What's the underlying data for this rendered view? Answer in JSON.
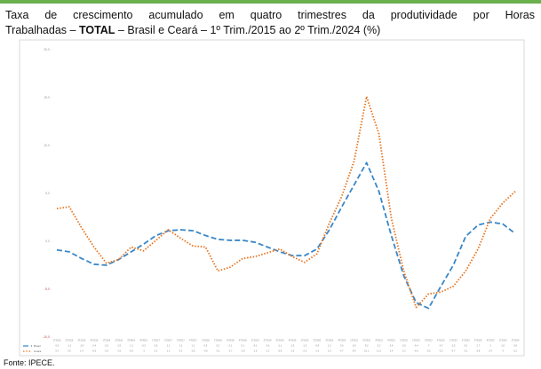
{
  "chart_data": {
    "type": "line",
    "title": [
      "Taxa de crescimento acumulado em quatro trimestres da produtividade por Horas",
      "Trabalhadas – ",
      "TOTAL",
      " – Brasil e Ceará – 1º Trim./2015 ao 2º Trim./2024 (%)"
    ],
    "source": "Fonte: IPECE.",
    "categories": [
      "1T2015",
      "2T2015",
      "3T2015",
      "4T2015",
      "1T2016",
      "2T2016",
      "3T2016",
      "4T2016",
      "1T2017",
      "2T2017",
      "3T2017",
      "4T2017",
      "1T2018",
      "2T2018",
      "3T2018",
      "4T2018",
      "1T2019",
      "2T2019",
      "3T2019",
      "4T2019",
      "1T2020",
      "2T2020",
      "3T2020",
      "4T2020",
      "1T2021",
      "2T2021",
      "3T2021",
      "4T2021",
      "1T2022",
      "2T2022",
      "3T2022",
      "4T2022",
      "1T2023",
      "2T2023",
      "3T2023",
      "4T2023",
      "1T2024",
      "2T2024"
    ],
    "series": [
      {
        "name": "Brasil",
        "color": "#3a87c8",
        "dash": "dashed",
        "values": [
          -0.9,
          -1.1,
          -1.8,
          -2.4,
          -2.5,
          -1.9,
          -1.1,
          -0.3,
          0.6,
          1.1,
          1.2,
          1.1,
          0.6,
          0.2,
          0.1,
          0.1,
          -0.1,
          -0.6,
          -1.1,
          -1.5,
          -1.5,
          -0.8,
          1.2,
          3.6,
          5.9,
          8.2,
          5.2,
          0.6,
          -3.6,
          -6.4,
          -7.0,
          -4.7,
          -2.5,
          0.5,
          1.7,
          2.0,
          1.8,
          0.8
        ]
      },
      {
        "name": "Ceará",
        "color": "#e8731c",
        "dash": "dotted",
        "values": [
          3.4,
          3.6,
          1.4,
          -0.6,
          -2.3,
          -1.9,
          -0.6,
          -1.0,
          0.1,
          1.2,
          0.3,
          -0.5,
          -0.6,
          -3.1,
          -2.7,
          -1.8,
          -1.6,
          -1.2,
          -0.8,
          -1.6,
          -2.2,
          -1.3,
          1.9,
          4.7,
          8.4,
          15.1,
          11.2,
          2.4,
          -3.1,
          -6.9,
          -5.5,
          -5.3,
          -4.7,
          -3.1,
          -0.8,
          2.4,
          4.0,
          5.2
        ]
      }
    ],
    "ylim": [
      -10,
      20
    ],
    "yticks": [
      {
        "value": -10,
        "label": "-10,0"
      },
      {
        "value": -5,
        "label": "-5,0"
      },
      {
        "value": 0,
        "label": "0,0"
      },
      {
        "value": 5,
        "label": "5,0"
      },
      {
        "value": 10,
        "label": "10,0"
      },
      {
        "value": 15,
        "label": "15,0"
      },
      {
        "value": 20,
        "label": "20,0"
      }
    ],
    "grid": false
  }
}
